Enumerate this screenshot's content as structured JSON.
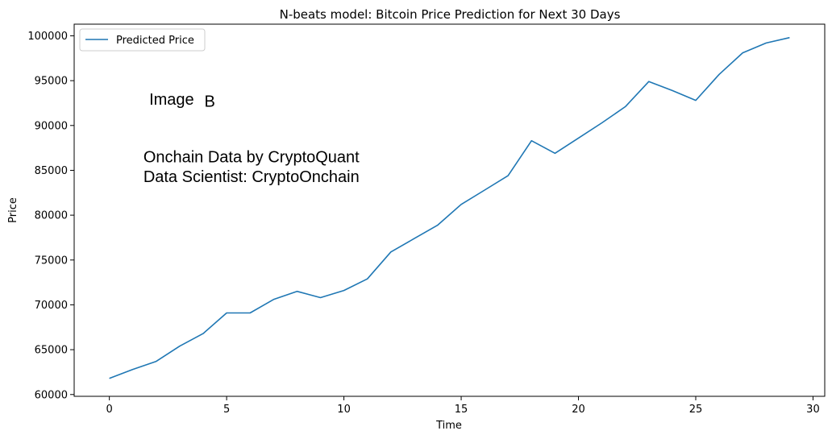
{
  "chart_data": {
    "type": "line",
    "title": "N-beats model: Bitcoin Price Prediction for Next 30 Days",
    "xlabel": "Time",
    "ylabel": "Price",
    "xlim": [
      -1.5,
      30.5
    ],
    "ylim": [
      59800,
      101300
    ],
    "xticks": [
      0,
      5,
      10,
      15,
      20,
      25,
      30
    ],
    "yticks": [
      60000,
      65000,
      70000,
      75000,
      80000,
      85000,
      90000,
      95000,
      100000
    ],
    "grid": false,
    "legend": "top-left",
    "series": [
      {
        "name": "Predicted Price",
        "color": "#1f77b4",
        "x": [
          0,
          1,
          2,
          3,
          4,
          5,
          6,
          7,
          8,
          9,
          10,
          11,
          12,
          13,
          14,
          15,
          16,
          17,
          18,
          19,
          20,
          21,
          22,
          23,
          24,
          25,
          26,
          27,
          28,
          29
        ],
        "values": [
          61800,
          62800,
          63700,
          65400,
          66800,
          69100,
          69100,
          70600,
          71500,
          70800,
          71600,
          72900,
          75900,
          77400,
          78900,
          81200,
          82800,
          84400,
          88300,
          86900,
          88600,
          90300,
          92100,
          94900,
          93900,
          92800,
          95700,
          98100,
          99200,
          99800
        ]
      }
    ],
    "annotations": [
      {
        "text": "Image",
        "x": 1.7,
        "y": 92300
      },
      {
        "text": "B",
        "x": 4.05,
        "y": 92100
      },
      {
        "text": "Onchain Data by CryptoQuant",
        "x": 1.45,
        "y": 85900
      },
      {
        "text": "Data Scientist: CryptoOnchain",
        "x": 1.45,
        "y": 83700
      }
    ]
  }
}
